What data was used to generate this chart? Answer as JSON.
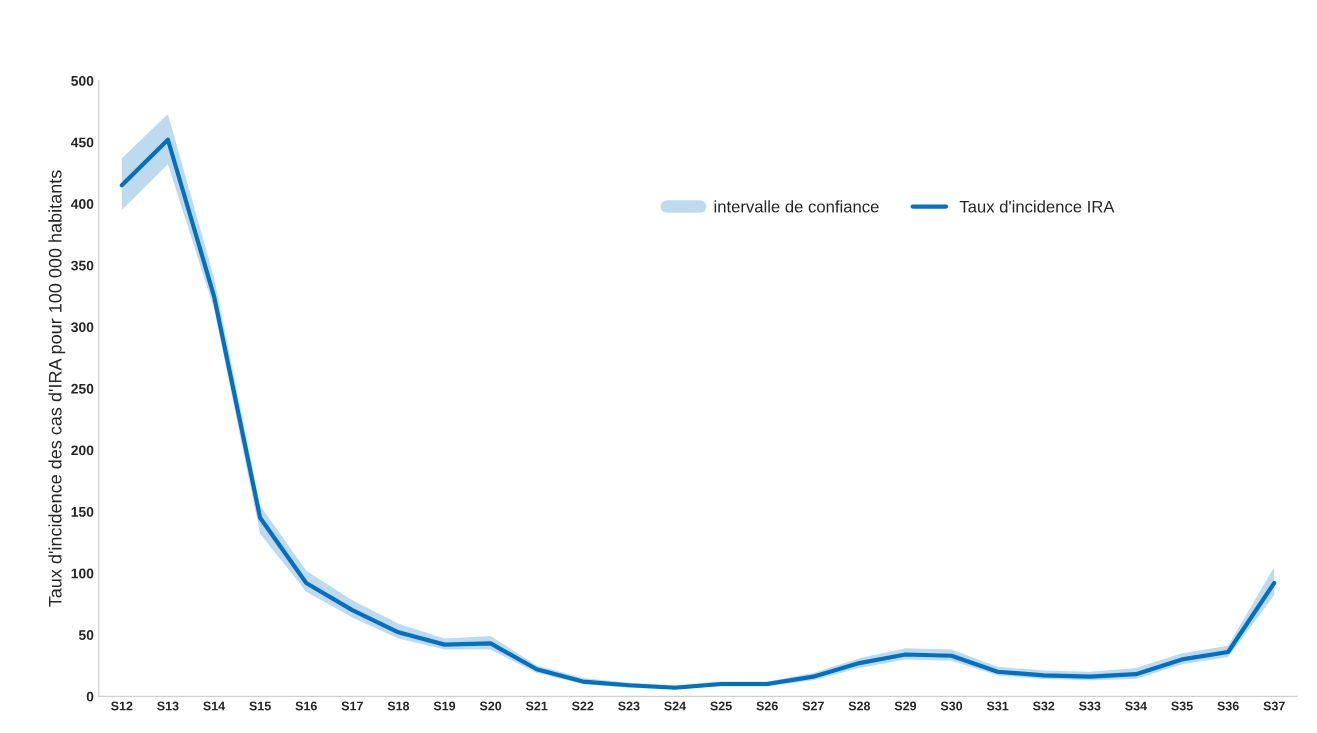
{
  "chart_data": {
    "type": "line",
    "ylabel": "Taux d'incidence des cas d'IRA pour 100 000 habitants",
    "categories": [
      "S12",
      "S13",
      "S14",
      "S15",
      "S16",
      "S17",
      "S18",
      "S19",
      "S20",
      "S21",
      "S22",
      "S23",
      "S24",
      "S25",
      "S26",
      "S27",
      "S28",
      "S29",
      "S30",
      "S31",
      "S32",
      "S33",
      "S34",
      "S35",
      "S36",
      "S37"
    ],
    "series": [
      {
        "name": "Taux d'incidence IRA",
        "color": "#0070c0",
        "values": [
          415,
          452,
          325,
          145,
          92,
          70,
          52,
          42,
          43,
          22,
          12,
          9,
          7,
          10,
          10,
          16,
          27,
          34,
          33,
          20,
          17,
          16,
          18,
          30,
          36,
          92
        ],
        "lower": [
          395,
          432,
          315,
          132,
          85,
          64,
          47,
          38,
          38,
          19,
          10,
          7,
          6,
          8,
          8,
          13,
          23,
          30,
          29,
          17,
          14,
          13,
          14,
          26,
          32,
          82
        ],
        "upper": [
          437,
          473,
          340,
          155,
          102,
          78,
          59,
          47,
          49,
          25,
          15,
          11,
          9,
          12,
          12,
          19,
          31,
          39,
          38,
          24,
          21,
          20,
          23,
          35,
          41,
          105
        ]
      }
    ],
    "ylim": [
      0,
      500
    ],
    "yticks": [
      0,
      50,
      100,
      150,
      200,
      250,
      300,
      350,
      400,
      450,
      500
    ],
    "annotations": [
      "intervalle de confiance"
    ],
    "grid": false,
    "legend": "top right",
    "marker": "none",
    "line_style": "solid"
  }
}
